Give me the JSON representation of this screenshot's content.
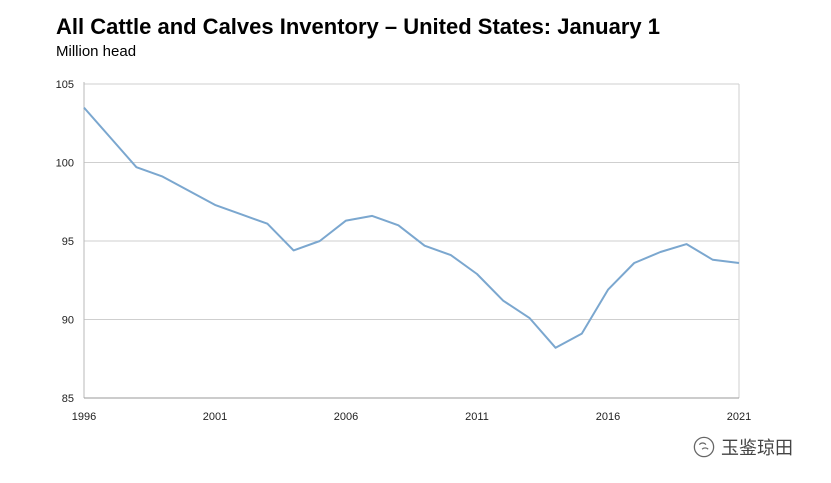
{
  "chart_data": {
    "type": "line",
    "title": "All Cattle and Calves Inventory – United States: January 1",
    "subtitle": "Million head",
    "x": [
      1996,
      1997,
      1998,
      1999,
      2000,
      2001,
      2002,
      2003,
      2004,
      2005,
      2006,
      2007,
      2008,
      2009,
      2010,
      2011,
      2012,
      2013,
      2014,
      2015,
      2016,
      2017,
      2018,
      2019,
      2020,
      2021
    ],
    "series": [
      {
        "values": [
          103.5,
          101.6,
          99.7,
          99.1,
          98.2,
          97.3,
          96.7,
          96.1,
          94.4,
          95.0,
          96.3,
          96.6,
          96.0,
          94.7,
          94.1,
          92.9,
          91.2,
          90.1,
          88.2,
          89.1,
          91.9,
          93.6,
          94.3,
          94.8,
          93.8,
          93.6
        ]
      }
    ],
    "xticks": [
      "1996",
      "2001",
      "2006",
      "2011",
      "2016",
      "2021"
    ],
    "yticks": [
      "85",
      "90",
      "95",
      "100",
      "105"
    ],
    "xlim": [
      1996,
      2021
    ],
    "ylim": [
      85,
      105
    ],
    "grid": true,
    "line_color": "#7ba7cf",
    "grid_color": "#cfcfcf"
  },
  "watermark": {
    "text": "玉鉴琼田",
    "icon": "wechat-icon"
  }
}
